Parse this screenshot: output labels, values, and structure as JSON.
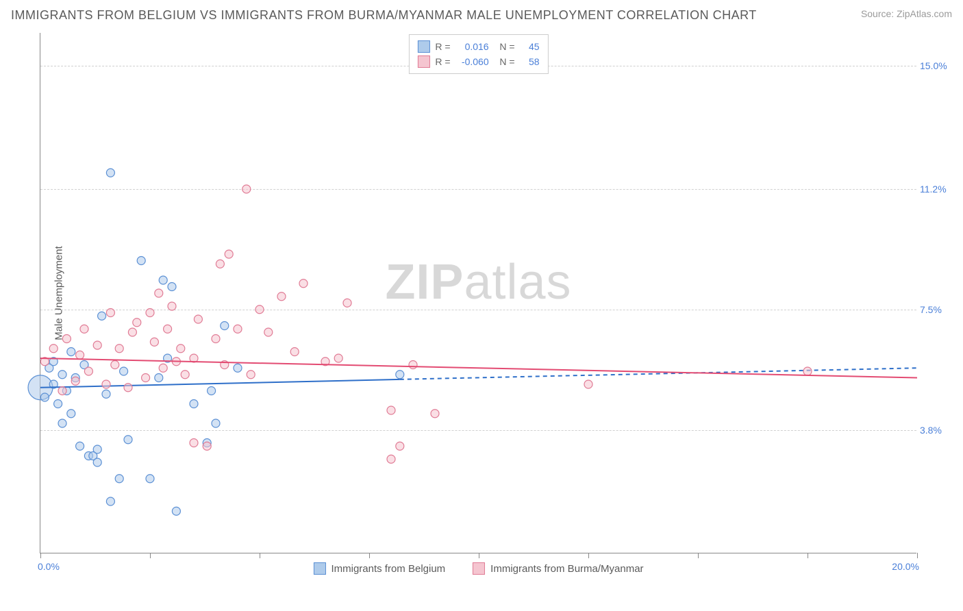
{
  "title": "IMMIGRANTS FROM BELGIUM VS IMMIGRANTS FROM BURMA/MYANMAR MALE UNEMPLOYMENT CORRELATION CHART",
  "source": "Source: ZipAtlas.com",
  "watermark_zip": "ZIP",
  "watermark_atlas": "atlas",
  "y_title": "Male Unemployment",
  "chart": {
    "type": "scatter",
    "xlim": [
      0,
      20
    ],
    "ylim": [
      0,
      16
    ],
    "x_min_label": "0.0%",
    "x_max_label": "20.0%",
    "x_tick_positions": [
      0,
      2.5,
      5,
      7.5,
      10,
      12.5,
      15,
      17.5,
      20
    ],
    "y_gridlines": [
      {
        "val": 3.8,
        "label": "3.8%"
      },
      {
        "val": 7.5,
        "label": "7.5%"
      },
      {
        "val": 11.2,
        "label": "11.2%"
      },
      {
        "val": 15.0,
        "label": "15.0%"
      }
    ],
    "background_color": "#ffffff",
    "grid_color": "#d0d0d0",
    "axis_color": "#888888",
    "series": [
      {
        "name": "Immigrants from Belgium",
        "fill": "#aecbeb",
        "stroke": "#5a8fd4",
        "line_color": "#2e6fc9",
        "r_value": "0.016",
        "n_value": "45",
        "trend": {
          "solid": [
            [
              0,
              5.1
            ],
            [
              8.2,
              5.35
            ]
          ],
          "dashed": [
            [
              8.2,
              5.35
            ],
            [
              20,
              5.7
            ]
          ]
        },
        "points": [
          [
            0.0,
            5.1,
            18
          ],
          [
            0.1,
            4.8,
            6
          ],
          [
            0.2,
            5.7,
            6
          ],
          [
            0.3,
            5.2,
            6
          ],
          [
            0.3,
            5.9,
            6
          ],
          [
            0.4,
            4.6,
            6
          ],
          [
            0.5,
            5.5,
            6
          ],
          [
            0.5,
            4.0,
            6
          ],
          [
            0.6,
            5.0,
            6
          ],
          [
            0.7,
            6.2,
            6
          ],
          [
            0.7,
            4.3,
            6
          ],
          [
            0.8,
            5.4,
            6
          ],
          [
            0.9,
            3.3,
            6
          ],
          [
            1.0,
            5.8,
            6
          ],
          [
            1.1,
            3.0,
            6
          ],
          [
            1.2,
            3.0,
            6
          ],
          [
            1.3,
            3.2,
            6
          ],
          [
            1.3,
            2.8,
            6
          ],
          [
            1.4,
            7.3,
            6
          ],
          [
            1.5,
            4.9,
            6
          ],
          [
            1.6,
            1.6,
            6
          ],
          [
            1.6,
            11.7,
            6
          ],
          [
            1.8,
            2.3,
            6
          ],
          [
            1.9,
            5.6,
            6
          ],
          [
            2.0,
            3.5,
            6
          ],
          [
            2.3,
            9.0,
            6
          ],
          [
            2.5,
            2.3,
            6
          ],
          [
            2.7,
            5.4,
            6
          ],
          [
            2.8,
            8.4,
            6
          ],
          [
            2.9,
            6.0,
            6
          ],
          [
            3.0,
            8.2,
            6
          ],
          [
            3.1,
            1.3,
            6
          ],
          [
            3.5,
            4.6,
            6
          ],
          [
            3.8,
            3.4,
            6
          ],
          [
            3.9,
            5.0,
            6
          ],
          [
            4.0,
            4.0,
            6
          ],
          [
            4.2,
            7.0,
            6
          ],
          [
            4.5,
            5.7,
            6
          ],
          [
            8.2,
            5.5,
            6
          ]
        ]
      },
      {
        "name": "Immigrants from Burma/Myanmar",
        "fill": "#f5c5d0",
        "stroke": "#e07a94",
        "line_color": "#e34b72",
        "r_value": "-0.060",
        "n_value": "58",
        "trend": {
          "solid": [
            [
              0,
              6.0
            ],
            [
              20,
              5.4
            ]
          ],
          "dashed": null
        },
        "points": [
          [
            0.1,
            5.9,
            6
          ],
          [
            0.3,
            6.3,
            6
          ],
          [
            0.5,
            5.0,
            6
          ],
          [
            0.6,
            6.6,
            6
          ],
          [
            0.8,
            5.3,
            6
          ],
          [
            0.9,
            6.1,
            6
          ],
          [
            1.0,
            6.9,
            6
          ],
          [
            1.1,
            5.6,
            6
          ],
          [
            1.3,
            6.4,
            6
          ],
          [
            1.5,
            5.2,
            6
          ],
          [
            1.6,
            7.4,
            6
          ],
          [
            1.7,
            5.8,
            6
          ],
          [
            1.8,
            6.3,
            6
          ],
          [
            2.0,
            5.1,
            6
          ],
          [
            2.1,
            6.8,
            6
          ],
          [
            2.2,
            7.1,
            6
          ],
          [
            2.4,
            5.4,
            6
          ],
          [
            2.5,
            7.4,
            6
          ],
          [
            2.6,
            6.5,
            6
          ],
          [
            2.7,
            8.0,
            6
          ],
          [
            2.8,
            5.7,
            6
          ],
          [
            2.9,
            6.9,
            6
          ],
          [
            3.0,
            7.6,
            6
          ],
          [
            3.1,
            5.9,
            6
          ],
          [
            3.2,
            6.3,
            6
          ],
          [
            3.3,
            5.5,
            6
          ],
          [
            3.5,
            6.0,
            6
          ],
          [
            3.5,
            3.4,
            6
          ],
          [
            3.6,
            7.2,
            6
          ],
          [
            3.8,
            3.3,
            6
          ],
          [
            4.0,
            6.6,
            6
          ],
          [
            4.1,
            8.9,
            6
          ],
          [
            4.2,
            5.8,
            6
          ],
          [
            4.3,
            9.2,
            6
          ],
          [
            4.5,
            6.9,
            6
          ],
          [
            4.7,
            11.2,
            6
          ],
          [
            4.8,
            5.5,
            6
          ],
          [
            5.0,
            7.5,
            6
          ],
          [
            5.2,
            6.8,
            6
          ],
          [
            5.5,
            7.9,
            6
          ],
          [
            5.8,
            6.2,
            6
          ],
          [
            6.0,
            8.3,
            6
          ],
          [
            6.5,
            5.9,
            6
          ],
          [
            6.8,
            6.0,
            6
          ],
          [
            7.0,
            7.7,
            6
          ],
          [
            8.0,
            4.4,
            6
          ],
          [
            8.0,
            2.9,
            6
          ],
          [
            8.2,
            3.3,
            6
          ],
          [
            8.5,
            5.8,
            6
          ],
          [
            9.0,
            4.3,
            6
          ],
          [
            12.5,
            5.2,
            6
          ],
          [
            17.5,
            5.6,
            6
          ]
        ]
      }
    ]
  },
  "legend": {
    "series1": "Immigrants from Belgium",
    "series2": "Immigrants from Burma/Myanmar"
  }
}
